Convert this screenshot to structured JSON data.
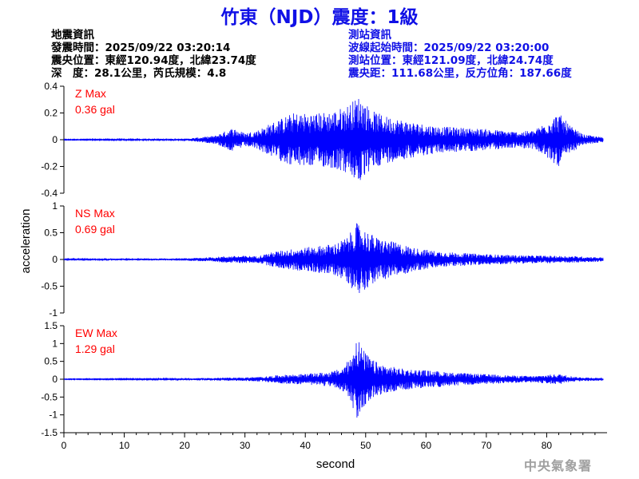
{
  "title": "竹東（NJD）震度：1級",
  "earthquake_info": {
    "header": "地震資訊",
    "origin_time": "發震時間：2025/09/22 03:20:14",
    "epicenter": "震央位置：東經120.94度，北緯23.74度",
    "depth_magnitude": "深　度：28.1公里，芮氏規模：4.8"
  },
  "station_info": {
    "header": "測站資訊",
    "wave_start": "波線起始時間：2025/09/22 03:20:00",
    "location": "測站位置：東經121.09度，北緯24.74度",
    "distance": "震央距：111.68公里，反方位角：187.66度"
  },
  "watermark": "中央氣象署",
  "colors": {
    "trace": "#0000ff",
    "max_label": "#ff0000",
    "title": "#1010e6",
    "axis": "#000000"
  },
  "chart_data": [
    {
      "type": "line",
      "name": "Z",
      "max_label": "Z Max",
      "max_value": "0.36 gal",
      "ylim": [
        -0.4,
        0.4
      ],
      "yticks": [
        -0.4,
        -0.2,
        0,
        0.2,
        0.4
      ],
      "ytick_labels": [
        "-0.4",
        "-0.2",
        "0",
        "0.2",
        "0.4"
      ],
      "envelope": {
        "x": [
          0,
          20,
          25,
          27,
          28,
          30,
          32,
          35,
          38,
          42,
          45,
          47,
          49,
          51,
          53,
          55,
          58,
          62,
          66,
          70,
          75,
          78,
          80,
          82,
          84,
          86,
          89
        ],
        "y": [
          0.003,
          0.006,
          0.03,
          0.07,
          0.09,
          0.05,
          0.07,
          0.14,
          0.2,
          0.2,
          0.22,
          0.26,
          0.33,
          0.22,
          0.18,
          0.16,
          0.13,
          0.1,
          0.09,
          0.08,
          0.06,
          0.07,
          0.14,
          0.2,
          0.1,
          0.04,
          0.02
        ]
      }
    },
    {
      "type": "line",
      "name": "NS",
      "max_label": "NS Max",
      "max_value": "0.69 gal",
      "ylim": [
        -1,
        1
      ],
      "yticks": [
        -1,
        -0.5,
        0,
        0.5,
        1
      ],
      "ytick_labels": [
        "-1",
        "-0.5",
        "0",
        "0.5",
        "1"
      ],
      "envelope": {
        "x": [
          0,
          20,
          24,
          27,
          30,
          32,
          35,
          38,
          42,
          45,
          47,
          48.5,
          50,
          52,
          55,
          58,
          62,
          66,
          70,
          75,
          80,
          85,
          89
        ],
        "y": [
          0.01,
          0.02,
          0.04,
          0.06,
          0.07,
          0.06,
          0.15,
          0.2,
          0.25,
          0.3,
          0.42,
          0.68,
          0.55,
          0.4,
          0.32,
          0.22,
          0.15,
          0.12,
          0.1,
          0.08,
          0.07,
          0.06,
          0.04
        ]
      }
    },
    {
      "type": "line",
      "name": "EW",
      "max_label": "EW Max",
      "max_value": "1.29 gal",
      "ylim": [
        -1.5,
        1.5
      ],
      "yticks": [
        -1.5,
        -1,
        -0.5,
        0,
        0.5,
        1,
        1.5
      ],
      "ytick_labels": [
        "-1.5",
        "-1",
        "-0.5",
        "0",
        "0.5",
        "1",
        "1.5"
      ],
      "envelope": {
        "x": [
          0,
          20,
          25,
          30,
          33,
          36,
          40,
          44,
          46,
          47.5,
          48.5,
          49.5,
          51,
          53,
          56,
          60,
          65,
          70,
          75,
          78,
          82,
          85,
          89
        ],
        "y": [
          0.01,
          0.02,
          0.04,
          0.05,
          0.07,
          0.12,
          0.15,
          0.2,
          0.3,
          0.6,
          1.28,
          0.85,
          0.55,
          0.4,
          0.3,
          0.25,
          0.18,
          0.14,
          0.1,
          0.09,
          0.15,
          0.06,
          0.04
        ]
      }
    }
  ],
  "x_axis": {
    "label": "second",
    "range": [
      0,
      90
    ],
    "ticks": [
      0,
      10,
      20,
      30,
      40,
      50,
      60,
      70,
      80
    ],
    "tick_labels": [
      "0",
      "10",
      "20",
      "30",
      "40",
      "50",
      "60",
      "70",
      "80"
    ]
  },
  "y_axis": {
    "label": "acceleration"
  }
}
